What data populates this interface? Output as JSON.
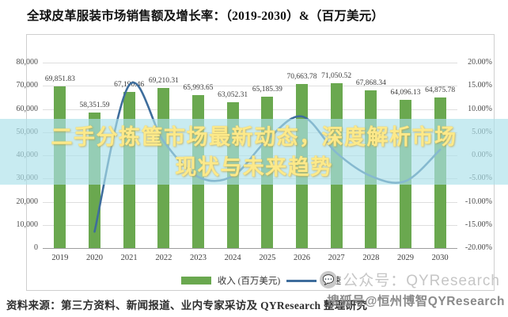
{
  "title": "全球皮革服装市场销售额及增长率：（2019-2030）&（百万美元）",
  "overlay": {
    "line1": "二手分拣筐市场最新动态，深度解析市场",
    "line2": "现状与未来趋势"
  },
  "legend": {
    "revenue_label": "收入 (百万美元)",
    "growth_label": "增速"
  },
  "footer": {
    "source": "资料来源：第三方资料、新闻报道、业内专家采访及 QYResearch 整理研究",
    "wechat_watermark": "公众号：QYResearch",
    "sohu_watermark": "搜狐号@恒州博智QYResearch"
  },
  "axes": {
    "left_ticks": [
      "80,000",
      "70,000",
      "60,000",
      "50,000",
      "40,000",
      "30,000",
      "20,000",
      "10,000",
      "0"
    ],
    "right_ticks": [
      "20.00%",
      "15.00%",
      "10.00%",
      "5.00%",
      "0.00%",
      "-5.00%",
      "-10.00%",
      "-15.00%",
      "-20.00%"
    ]
  },
  "chart_data": {
    "type": "bar",
    "subtype": "bar-line-combo",
    "title": "全球皮革服装市场销售额及增长率：（2019-2030）&（百万美元）",
    "categories": [
      "2019",
      "2020",
      "2021",
      "2022",
      "2023",
      "2024",
      "2025",
      "2026",
      "2027",
      "2028",
      "2029",
      "2030"
    ],
    "series": [
      {
        "name": "收入 (百万美元)",
        "type": "bar",
        "axis": "left",
        "values": [
          69851.83,
          58351.59,
          67190.46,
          69210.31,
          65993.65,
          63052.31,
          65185.39,
          70663.78,
          71050.52,
          67868.34,
          64096.13,
          64875.78
        ],
        "labels": [
          "69,851.83",
          "58,351.59",
          "67,190.46",
          "69,210.31",
          "65,993.65",
          "63,052.31",
          "65,185.39",
          "70,663.78",
          "71,050.52",
          "67,868.34",
          "64,096.13",
          "64,875.78"
        ]
      },
      {
        "name": "增速",
        "type": "line",
        "axis": "right",
        "values_percent": [
          null,
          -16.46,
          15.15,
          3.01,
          -4.65,
          -4.46,
          3.38,
          8.4,
          0.55,
          -4.48,
          -5.56,
          1.22
        ]
      }
    ],
    "ylim_left": [
      0,
      80000
    ],
    "ylim_right": [
      -20,
      20
    ],
    "grid": true,
    "legend_position": "bottom"
  },
  "colors": {
    "bar": "#6aa84f",
    "line": "#3e6d9c",
    "overlay_band": "rgba(172,224,233,0.66)",
    "overlay_text": "#fce98a",
    "grid": "#dedede",
    "axis_text": "#4a4a4a",
    "watermark_light": "#c6c6c6",
    "watermark_dark": "#8a8a8a"
  }
}
